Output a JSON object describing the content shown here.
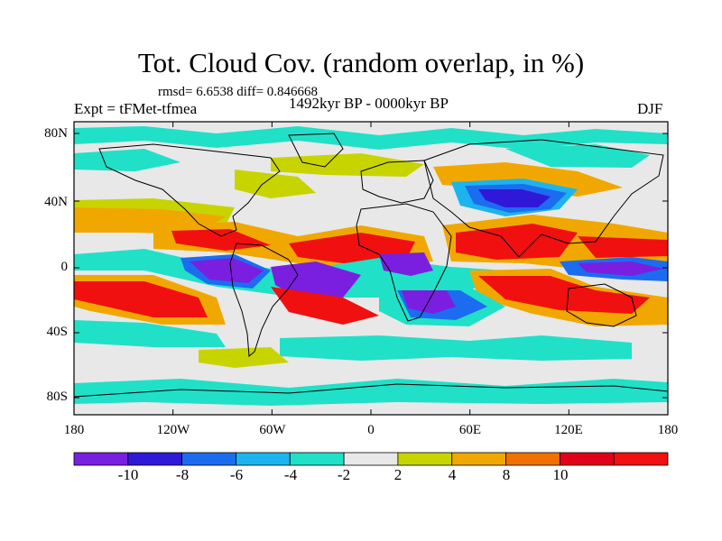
{
  "map": {
    "title": "Tot. Cloud Cov. (random overlap, in %)",
    "stats_text": "rmsd= 6.6538 diff= 0.846668",
    "left_label": "Expt = tFMet-tfmea",
    "center_label": "1492kyr BP - 0000kyr BP",
    "right_label": "DJF",
    "lat_ticks": [
      "80N",
      "40N",
      "0",
      "40S",
      "80S"
    ],
    "lon_ticks": [
      "180",
      "120W",
      "60W",
      "0",
      "60E",
      "120E",
      "180"
    ]
  },
  "colorbar": {
    "labels": [
      "-10",
      "-8",
      "-6",
      "-4",
      "-2",
      "2",
      "4",
      "8",
      "10"
    ],
    "colors": [
      "#7a1fe0",
      "#3018d8",
      "#1c6cf0",
      "#1cb4ec",
      "#20e0c8",
      "#e8e8e8",
      "#c8d400",
      "#f0a800",
      "#f07000",
      "#e00018",
      "#f01010"
    ]
  },
  "colors": {
    "land_outline": "#000000",
    "neutral": "#e8e8e8"
  }
}
